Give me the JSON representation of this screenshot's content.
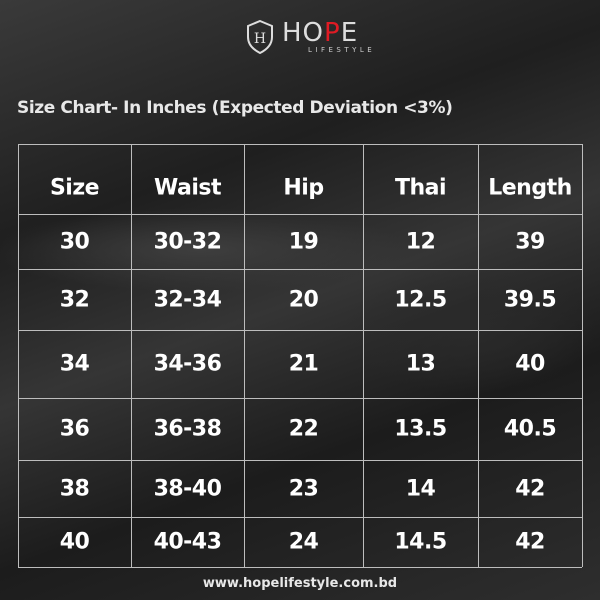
{
  "brand": {
    "name_part1": "HO",
    "name_red": "P",
    "name_part2": "E",
    "tagline": "LIFESTYLE",
    "monogram": "H",
    "accent_color": "#e01b24"
  },
  "title": "Size Chart- In Inches (Expected Deviation <3%)",
  "table": {
    "headers": [
      "Size",
      "Waist",
      "Hip",
      "Thai",
      "Length"
    ],
    "rows": [
      [
        "30",
        "30-32",
        "19",
        "12",
        "39"
      ],
      [
        "32",
        "32-34",
        "20",
        "12.5",
        "39.5"
      ],
      [
        "34",
        "34-36",
        "21",
        "13",
        "40"
      ],
      [
        "36",
        "36-38",
        "22",
        "13.5",
        "40.5"
      ],
      [
        "38",
        "38-40",
        "23",
        "14",
        "42"
      ],
      [
        "40",
        "40-43",
        "24",
        "14.5",
        "42"
      ]
    ]
  },
  "footer": "www.hopelifestyle.com.bd"
}
